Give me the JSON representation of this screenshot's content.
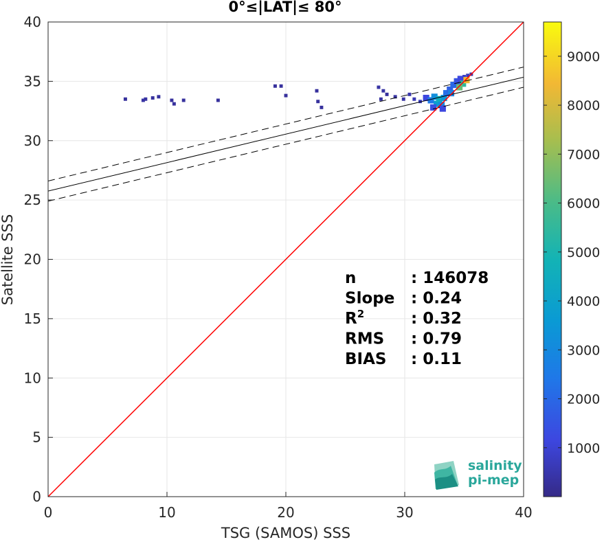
{
  "chart_data": {
    "type": "heatmap",
    "title": "0°≤|LAT|≤ 80°",
    "xlabel": "TSG (SAMOS) SSS",
    "ylabel": "Satellite SSS",
    "xlim": [
      0,
      40
    ],
    "ylim": [
      0,
      40
    ],
    "xticks": [
      "0",
      "10",
      "20",
      "30",
      "40"
    ],
    "yticks": [
      "0",
      "5",
      "10",
      "15",
      "20",
      "25",
      "30",
      "35",
      "40"
    ],
    "grid": true,
    "colorbar": {
      "range": [
        0,
        9700
      ],
      "ticks": [
        "1000",
        "2000",
        "3000",
        "4000",
        "5000",
        "6000",
        "7000",
        "8000",
        "9000"
      ],
      "colormap": "parula"
    },
    "one_to_one_line": {
      "color": "#ff0000",
      "from": [
        0,
        0
      ],
      "to": [
        40,
        40
      ]
    },
    "regression": {
      "intercept": 25.75,
      "slope": 0.24,
      "band_offset": 0.85,
      "color": "#000000"
    },
    "density_points": [
      [
        6.5,
        33.5,
        300
      ],
      [
        8.0,
        33.4,
        400
      ],
      [
        8.2,
        33.5,
        350
      ],
      [
        8.8,
        33.6,
        300
      ],
      [
        9.3,
        33.7,
        300
      ],
      [
        10.4,
        33.4,
        300
      ],
      [
        10.6,
        33.1,
        300
      ],
      [
        11.4,
        33.4,
        300
      ],
      [
        14.3,
        33.4,
        300
      ],
      [
        19.1,
        34.6,
        300
      ],
      [
        19.6,
        34.6,
        300
      ],
      [
        20.0,
        33.8,
        300
      ],
      [
        22.6,
        34.2,
        300
      ],
      [
        22.7,
        33.3,
        300
      ],
      [
        23.0,
        32.8,
        300
      ],
      [
        27.8,
        34.5,
        400
      ],
      [
        28.2,
        34.2,
        400
      ],
      [
        28.5,
        33.9,
        300
      ],
      [
        28.0,
        33.5,
        400
      ],
      [
        29.2,
        33.7,
        400
      ],
      [
        29.9,
        33.5,
        400
      ],
      [
        30.4,
        33.9,
        500
      ],
      [
        30.8,
        33.5,
        600
      ],
      [
        31.3,
        33.3,
        800
      ],
      [
        31.8,
        33.6,
        1200
      ],
      [
        32.2,
        33.4,
        2500
      ],
      [
        32.5,
        33.7,
        3200
      ],
      [
        32.7,
        33.1,
        3800
      ],
      [
        32.9,
        33.5,
        4500
      ],
      [
        33.1,
        33.0,
        3000
      ],
      [
        33.3,
        33.6,
        3500
      ],
      [
        33.5,
        34.0,
        2200
      ],
      [
        33.8,
        34.3,
        1800
      ],
      [
        34.1,
        34.7,
        2000
      ],
      [
        34.4,
        35.0,
        1500
      ],
      [
        34.7,
        35.2,
        1200
      ],
      [
        35.0,
        35.4,
        900
      ],
      [
        35.3,
        35.5,
        700
      ],
      [
        35.6,
        35.6,
        500
      ],
      [
        34.9,
        34.8,
        5500
      ],
      [
        35.2,
        35.1,
        8500
      ],
      [
        34.6,
        34.5,
        6500
      ],
      [
        33.9,
        34.0,
        2800
      ],
      [
        32.4,
        32.8,
        1400
      ],
      [
        33.2,
        32.7,
        1200
      ]
    ],
    "stats": [
      {
        "label": "n",
        "value": ": 146078"
      },
      {
        "label": "Slope",
        "value": ": 0.24"
      },
      {
        "label": "R",
        "sup": "2",
        "value": ": 0.32"
      },
      {
        "label": "RMS",
        "value": ": 0.79"
      },
      {
        "label": "BIAS",
        "value": ": 0.11"
      }
    ],
    "logo": {
      "line1": "salinity",
      "line2": "pi-mep"
    }
  }
}
